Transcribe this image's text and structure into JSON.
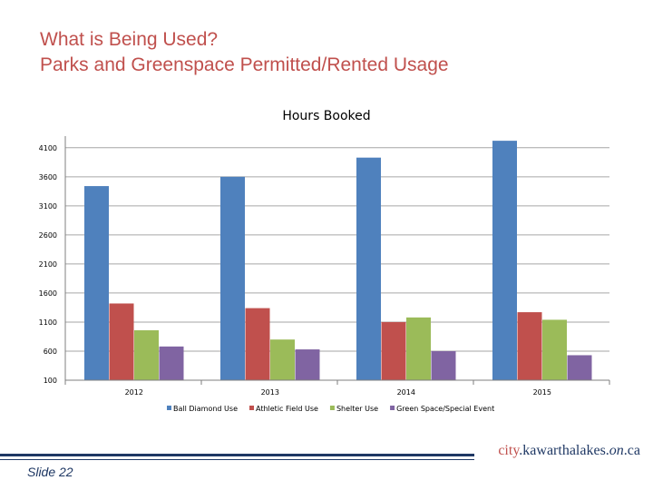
{
  "slide": {
    "title_line1": "What is Being Used?",
    "title_line2": "Parks and Greenspace Permitted/Rented Usage",
    "slide_number": "Slide 22",
    "brand": {
      "prefix": "city",
      "dot1": ".",
      "name": "kawarthalakes",
      "dot2": ".",
      "region": "on",
      "dot3": ".",
      "tld": "ca"
    }
  },
  "chart_data": {
    "type": "bar",
    "title": "Hours Booked",
    "categories": [
      "2012",
      "2013",
      "2014",
      "2015"
    ],
    "series": [
      {
        "name": "Ball Diamond Use",
        "color": "#4f81bd",
        "values": [
          3440,
          3600,
          3930,
          4220
        ]
      },
      {
        "name": "Athletic Field Use",
        "color": "#c0504d",
        "values": [
          1420,
          1340,
          1100,
          1270
        ]
      },
      {
        "name": "Shelter Use",
        "color": "#9bbb59",
        "values": [
          960,
          800,
          1180,
          1140
        ]
      },
      {
        "name": "Green Space/Special Event",
        "color": "#8064a2",
        "values": [
          680,
          630,
          600,
          530
        ]
      }
    ],
    "yticks": [
      100,
      600,
      1100,
      1600,
      2100,
      2600,
      3100,
      3600,
      4100
    ],
    "ylim": [
      100,
      4300
    ],
    "grid": true,
    "legend": "bottom"
  }
}
